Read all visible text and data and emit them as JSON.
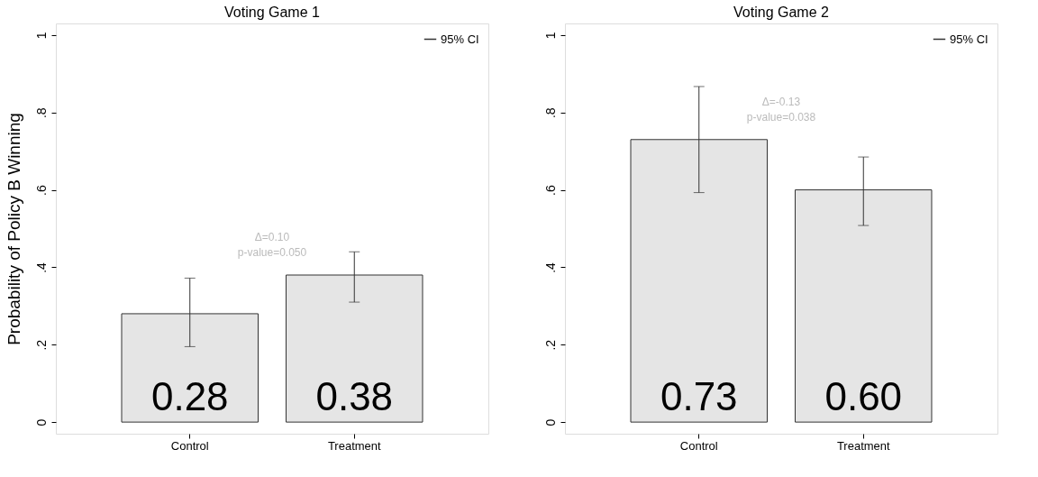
{
  "chart_data": [
    {
      "type": "bar",
      "title": "Voting Game 1",
      "ylabel": "Probability of Policy B Winning",
      "categories": [
        "Control",
        "Treatment"
      ],
      "values": [
        0.28,
        0.38
      ],
      "colors": [
        "#e5e5e5",
        "#e5e5e5"
      ],
      "errors": [
        [
          0.195,
          0.372
        ],
        [
          0.31,
          0.44
        ]
      ],
      "value_labels": [
        "0.28",
        "0.38"
      ],
      "ylim": [
        -0.03,
        1.03
      ],
      "yticks": [
        0,
        {
          "value": 0.2,
          "label": ".2"
        },
        {
          "value": 0.4,
          "label": ".4"
        },
        {
          "value": 0.6,
          "label": ".6"
        },
        {
          "value": 0.8,
          "label": ".8"
        },
        1
      ],
      "grid": false,
      "annotations": [
        "95% CI",
        "Δ=0.10",
        "p-value=0.050"
      ]
    },
    {
      "type": "bar",
      "title": "Voting Game 2",
      "categories": [
        "Control",
        "Treatment"
      ],
      "values": [
        0.73,
        0.6
      ],
      "colors": [
        "#e5e5e5",
        "#e5e5e5"
      ],
      "errors": [
        [
          0.593,
          0.867
        ],
        [
          0.508,
          0.685
        ]
      ],
      "value_labels": [
        "0.73",
        "0.60"
      ],
      "ylim": [
        -0.03,
        1.03
      ],
      "yticks": [
        0,
        {
          "value": 0.2,
          "label": ".2"
        },
        {
          "value": 0.4,
          "label": ".4"
        },
        {
          "value": 0.6,
          "label": ".6"
        },
        {
          "value": 0.8,
          "label": ".8"
        },
        1
      ],
      "grid": false,
      "annotations": [
        "95% CI",
        "Δ=-0.13",
        "p-value=0.038"
      ]
    }
  ]
}
